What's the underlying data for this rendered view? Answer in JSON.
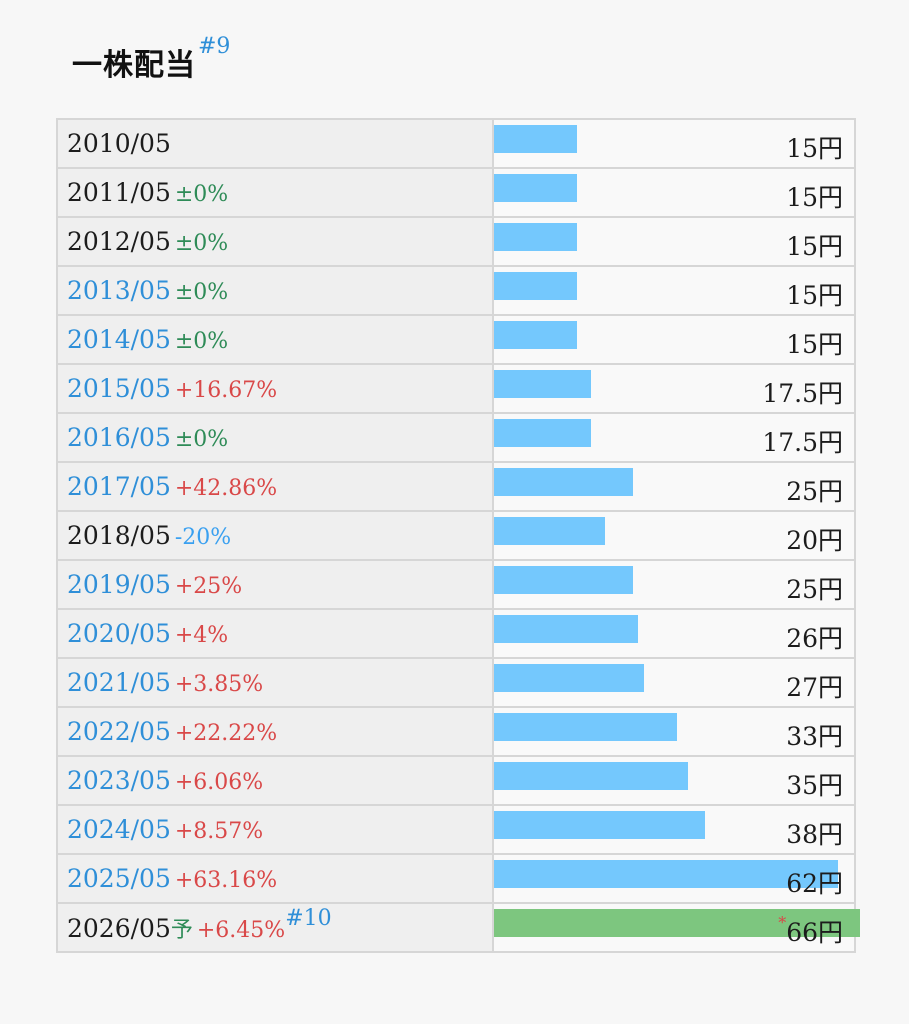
{
  "header": {
    "title": "一株配当",
    "note_ref": "#9"
  },
  "forecast_note_ref": "#10",
  "forecast_marker": "予",
  "forecast_star": "*",
  "max_value": 66,
  "colors": {
    "bar": "#74c8fd",
    "forecast_bar": "#7dc67f",
    "link": "#2f8fd8",
    "up": "#d94848",
    "flat": "#2e8b57",
    "down": "#3aa0f0"
  },
  "rows": [
    {
      "date": "2010/05",
      "link": false,
      "change": "",
      "trend": "flat",
      "value": 15,
      "label": "15円"
    },
    {
      "date": "2011/05",
      "link": false,
      "change": "±0%",
      "trend": "flat",
      "value": 15,
      "label": "15円"
    },
    {
      "date": "2012/05",
      "link": false,
      "change": "±0%",
      "trend": "flat",
      "value": 15,
      "label": "15円"
    },
    {
      "date": "2013/05",
      "link": true,
      "change": "±0%",
      "trend": "flat",
      "value": 15,
      "label": "15円"
    },
    {
      "date": "2014/05",
      "link": true,
      "change": "±0%",
      "trend": "flat",
      "value": 15,
      "label": "15円"
    },
    {
      "date": "2015/05",
      "link": true,
      "change": "+16.67%",
      "trend": "up",
      "value": 17.5,
      "label": "17.5円"
    },
    {
      "date": "2016/05",
      "link": true,
      "change": "±0%",
      "trend": "flat",
      "value": 17.5,
      "label": "17.5円"
    },
    {
      "date": "2017/05",
      "link": true,
      "change": "+42.86%",
      "trend": "up",
      "value": 25,
      "label": "25円"
    },
    {
      "date": "2018/05",
      "link": false,
      "change": "-20%",
      "trend": "down",
      "value": 20,
      "label": "20円"
    },
    {
      "date": "2019/05",
      "link": true,
      "change": "+25%",
      "trend": "up",
      "value": 25,
      "label": "25円"
    },
    {
      "date": "2020/05",
      "link": true,
      "change": "+4%",
      "trend": "up",
      "value": 26,
      "label": "26円"
    },
    {
      "date": "2021/05",
      "link": true,
      "change": "+3.85%",
      "trend": "up",
      "value": 27,
      "label": "27円"
    },
    {
      "date": "2022/05",
      "link": true,
      "change": "+22.22%",
      "trend": "up",
      "value": 33,
      "label": "33円"
    },
    {
      "date": "2023/05",
      "link": true,
      "change": "+6.06%",
      "trend": "up",
      "value": 35,
      "label": "35円"
    },
    {
      "date": "2024/05",
      "link": true,
      "change": "+8.57%",
      "trend": "up",
      "value": 38,
      "label": "38円"
    },
    {
      "date": "2025/05",
      "link": true,
      "change": "+63.16%",
      "trend": "up",
      "value": 62,
      "label": "62円"
    },
    {
      "date": "2026/05",
      "link": false,
      "change": "+6.45%",
      "trend": "up",
      "value": 66,
      "label": "66円",
      "forecast": true
    }
  ]
}
